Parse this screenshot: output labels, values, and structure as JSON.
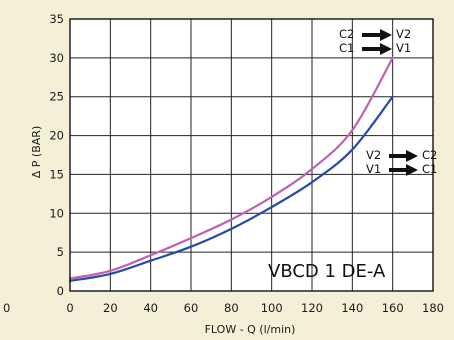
{
  "chart_data": {
    "type": "line",
    "title": "",
    "xlabel": "FLOW - Q (l/min)",
    "ylabel": "Δ P (BAR)",
    "xlim": [
      0,
      180
    ],
    "ylim": [
      0,
      35
    ],
    "x_ticks": [
      0,
      20,
      40,
      60,
      80,
      100,
      120,
      140,
      160,
      180
    ],
    "y_ticks": [
      0,
      5,
      10,
      15,
      20,
      25,
      30,
      35
    ],
    "grid": true,
    "model_label": "VBCD 1 DE-A",
    "stray_zero_label": "0",
    "series": [
      {
        "color": "#c060b0",
        "x": [
          0,
          20,
          40,
          60,
          80,
          100,
          120,
          140,
          160
        ],
        "y": [
          1.6,
          2.6,
          4.6,
          6.8,
          9.2,
          12.1,
          15.7,
          20.7,
          30.0
        ]
      },
      {
        "color": "#2a4aa8",
        "x": [
          0,
          20,
          40,
          60,
          80,
          100,
          120,
          140,
          160
        ],
        "y": [
          1.3,
          2.2,
          3.9,
          5.7,
          8.0,
          10.8,
          14.0,
          18.2,
          25.0
        ]
      }
    ],
    "annotations": [
      {
        "id": "upper",
        "line1": {
          "from": "C2",
          "to": "V2"
        },
        "line2": {
          "from": "C1",
          "to": "V1"
        }
      },
      {
        "id": "lower",
        "line1": {
          "from": "V2",
          "to": "C2"
        },
        "line2": {
          "from": "V1",
          "to": "C1"
        }
      }
    ]
  }
}
